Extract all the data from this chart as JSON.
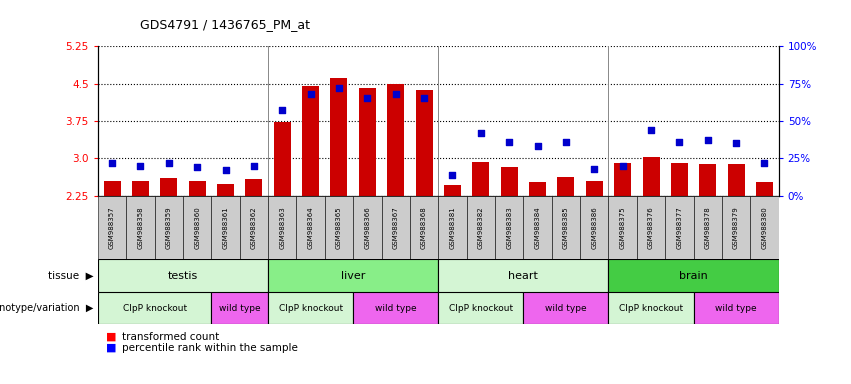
{
  "title": "GDS4791 / 1436765_PM_at",
  "samples": [
    "GSM988357",
    "GSM988358",
    "GSM988359",
    "GSM988360",
    "GSM988361",
    "GSM988362",
    "GSM988363",
    "GSM988364",
    "GSM988365",
    "GSM988366",
    "GSM988367",
    "GSM988368",
    "GSM988381",
    "GSM988382",
    "GSM988383",
    "GSM988384",
    "GSM988385",
    "GSM988386",
    "GSM988375",
    "GSM988376",
    "GSM988377",
    "GSM988378",
    "GSM988379",
    "GSM988380"
  ],
  "bar_values": [
    2.55,
    2.55,
    2.6,
    2.55,
    2.48,
    2.58,
    3.72,
    4.45,
    4.62,
    4.42,
    4.5,
    4.38,
    2.47,
    2.92,
    2.82,
    2.52,
    2.62,
    2.55,
    2.9,
    3.02,
    2.9,
    2.88,
    2.88,
    2.52
  ],
  "percentile_values": [
    22,
    20,
    22,
    19,
    17,
    20,
    57,
    68,
    72,
    65,
    68,
    65,
    14,
    42,
    36,
    33,
    36,
    18,
    20,
    44,
    36,
    37,
    35,
    22
  ],
  "tissues": [
    {
      "label": "testis",
      "start": 0,
      "end": 6,
      "color": "#d4f5d4"
    },
    {
      "label": "liver",
      "start": 6,
      "end": 12,
      "color": "#88ee88"
    },
    {
      "label": "heart",
      "start": 12,
      "end": 18,
      "color": "#d4f5d4"
    },
    {
      "label": "brain",
      "start": 18,
      "end": 24,
      "color": "#44cc44"
    }
  ],
  "genotypes": [
    {
      "label": "ClpP knockout",
      "start": 0,
      "end": 4,
      "color": "#d4f5d4"
    },
    {
      "label": "wild type",
      "start": 4,
      "end": 6,
      "color": "#ee66ee"
    },
    {
      "label": "ClpP knockout",
      "start": 6,
      "end": 9,
      "color": "#d4f5d4"
    },
    {
      "label": "wild type",
      "start": 9,
      "end": 12,
      "color": "#ee66ee"
    },
    {
      "label": "ClpP knockout",
      "start": 12,
      "end": 15,
      "color": "#d4f5d4"
    },
    {
      "label": "wild type",
      "start": 15,
      "end": 18,
      "color": "#ee66ee"
    },
    {
      "label": "ClpP knockout",
      "start": 18,
      "end": 21,
      "color": "#d4f5d4"
    },
    {
      "label": "wild type",
      "start": 21,
      "end": 24,
      "color": "#ee66ee"
    }
  ],
  "ylim_left": [
    2.25,
    5.25
  ],
  "ylim_right": [
    0,
    100
  ],
  "yticks_left": [
    2.25,
    3.0,
    3.75,
    4.5,
    5.25
  ],
  "yticks_right": [
    0,
    25,
    50,
    75,
    100
  ],
  "bar_color": "#cc0000",
  "dot_color": "#0000cc",
  "bar_width": 0.6,
  "base_value": 2.25,
  "tick_bg_color": "#cccccc"
}
